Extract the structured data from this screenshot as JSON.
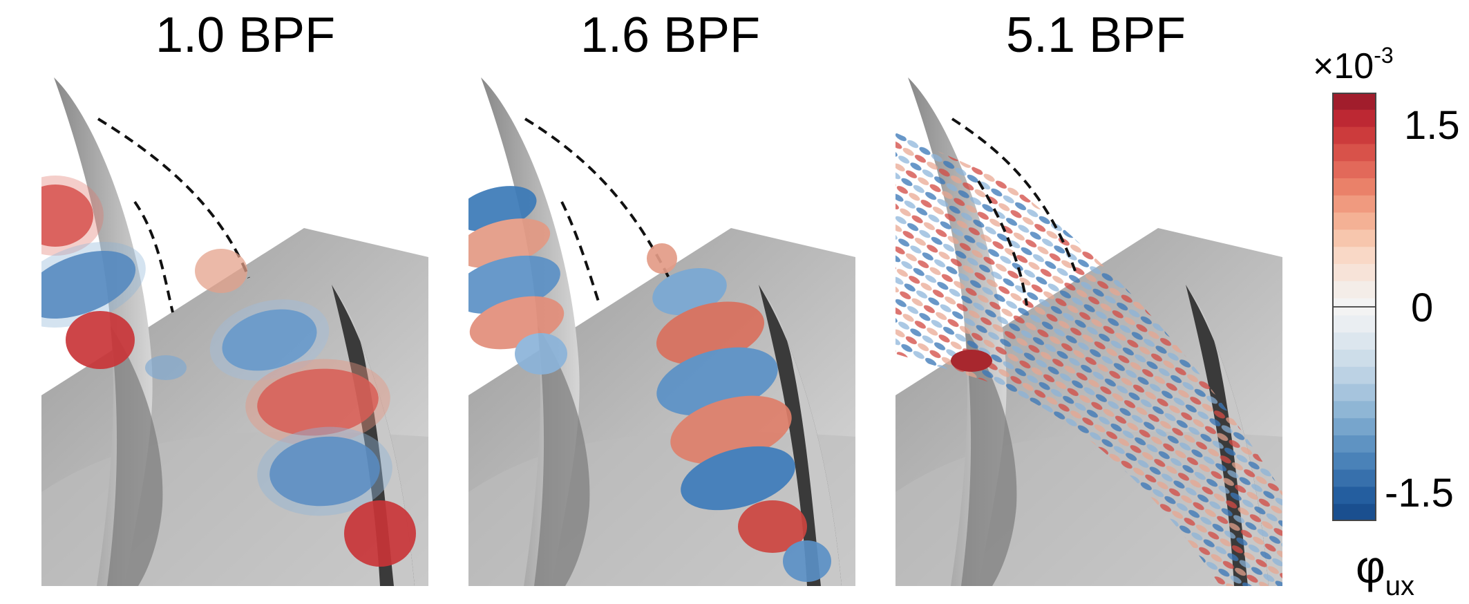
{
  "panels": [
    {
      "title": "1.0 BPF"
    },
    {
      "title": "1.6 BPF"
    },
    {
      "title": "5.1 BPF"
    }
  ],
  "colorbar": {
    "multiplier_base": "×10",
    "multiplier_exp": "-3",
    "ticks": [
      {
        "label": "1.5",
        "value": 0.0015
      },
      {
        "label": "0",
        "value": 0
      },
      {
        "label": "-1.5",
        "value": -0.0015
      }
    ],
    "label_main": "φ",
    "label_sub": "ux",
    "colors_top_to_bottom": [
      "#a11d2c",
      "#bd2833",
      "#cc3b3c",
      "#d8524a",
      "#e2695a",
      "#ea8169",
      "#f09a7f",
      "#f4b195",
      "#f7c6ad",
      "#f9d8c6",
      "#f7e3d8",
      "#f4ede8",
      "#f3f3f3",
      "#eaeef2",
      "#dce6ee",
      "#cddde9",
      "#bcd2e4",
      "#a6c4dd",
      "#8fb6d5",
      "#77a5cc",
      "#5f93c2",
      "#4a82b8",
      "#3770ac",
      "#245e9f",
      "#1a4f8f"
    ]
  }
}
